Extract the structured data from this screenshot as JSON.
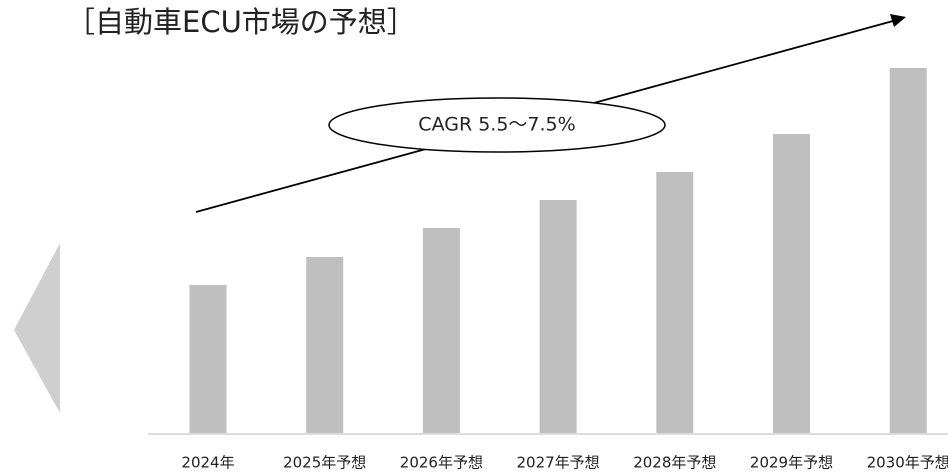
{
  "chart_data": {
    "type": "bar",
    "title": "［自動車ECU市場の予想］",
    "annotation": "CAGR  5.5～7.5%",
    "categories": [
      "2024年",
      "2025年予想",
      "2026年予想",
      "2027年予想",
      "2028年予想",
      "2029年予想",
      "2030年予想"
    ],
    "values": [
      148,
      176,
      205,
      233,
      261,
      299,
      365
    ],
    "color": "#bfbfbf",
    "ylim": [
      0,
      380
    ]
  }
}
